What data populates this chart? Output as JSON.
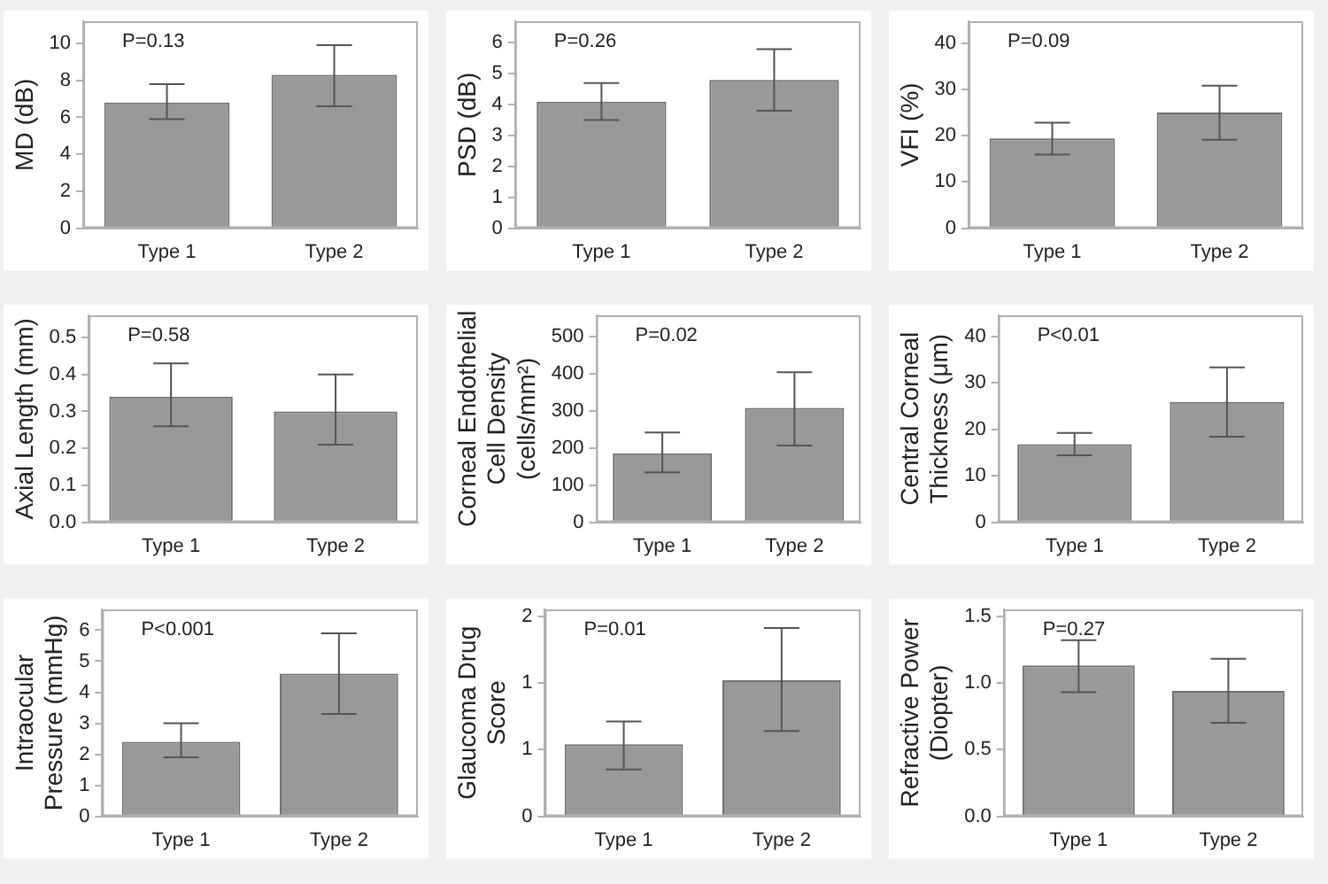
{
  "chart_data": [
    {
      "type": "bar",
      "ylabel": "MD (dB)",
      "categories": [
        "Type 1",
        "Type 2"
      ],
      "values": [
        6.8,
        8.3
      ],
      "errors": [
        [
          5.9,
          7.8
        ],
        [
          6.6,
          9.9
        ]
      ],
      "color": "#999999",
      "ylim": [
        0,
        11.2
      ],
      "yticks": [
        0,
        2,
        4,
        6,
        8,
        10
      ],
      "grid": false,
      "legend": false,
      "annotations": [
        "P=0.13"
      ]
    },
    {
      "type": "bar",
      "ylabel": "PSD (dB)",
      "categories": [
        "Type 1",
        "Type 2"
      ],
      "values": [
        4.1,
        4.8
      ],
      "errors": [
        [
          3.5,
          4.7
        ],
        [
          3.8,
          5.8
        ]
      ],
      "color": "#999999",
      "ylim": [
        0,
        6.7
      ],
      "yticks": [
        0,
        1,
        2,
        3,
        4,
        5,
        6
      ],
      "grid": false,
      "legend": false,
      "annotations": [
        "P=0.26"
      ]
    },
    {
      "type": "bar",
      "ylabel": "VFI (%)",
      "categories": [
        "Type 1",
        "Type 2"
      ],
      "values": [
        19.4,
        25.0
      ],
      "errors": [
        [
          15.9,
          22.8
        ],
        [
          19.1,
          30.8
        ]
      ],
      "color": "#999999",
      "ylim": [
        0,
        44.7
      ],
      "yticks": [
        0,
        10,
        20,
        30,
        40
      ],
      "grid": false,
      "legend": false,
      "annotations": [
        "P=0.09"
      ]
    },
    {
      "type": "bar",
      "ylabel": "Axial Length (mm)",
      "categories": [
        "Type 1",
        "Type 2"
      ],
      "values": [
        0.34,
        0.3
      ],
      "errors": [
        [
          0.26,
          0.43
        ],
        [
          0.21,
          0.4
        ]
      ],
      "color": "#999999",
      "ylim": [
        0,
        0.56
      ],
      "yticks": [
        {
          "value": 0,
          "label": "0.0"
        },
        0.1,
        0.2,
        0.3,
        0.4,
        0.5
      ],
      "grid": false,
      "legend": false,
      "annotations": [
        "P=0.58"
      ]
    },
    {
      "type": "bar",
      "ylabel": "Corneal Endothelial Cell Density (cells/mm²)",
      "categories": [
        "Type 1",
        "Type 2"
      ],
      "values": [
        185,
        307
      ],
      "errors": [
        [
          134,
          241
        ],
        [
          206,
          403
        ]
      ],
      "color": "#999999",
      "ylim": [
        0,
        556
      ],
      "yticks": [
        0,
        100,
        200,
        300,
        400,
        500
      ],
      "grid": false,
      "legend": false,
      "annotations": [
        "P=0.02"
      ]
    },
    {
      "type": "bar",
      "ylabel": "Central Corneal Thickness (μm)",
      "categories": [
        "Type 1",
        "Type 2"
      ],
      "values": [
        16.8,
        25.9
      ],
      "errors": [
        [
          14.4,
          19.2
        ],
        [
          18.4,
          33.3
        ]
      ],
      "color": "#999999",
      "ylim": [
        0,
        44.5
      ],
      "yticks": [
        0,
        10,
        20,
        30,
        40
      ],
      "grid": false,
      "legend": false,
      "annotations": [
        "P<0.01"
      ]
    },
    {
      "type": "bar",
      "ylabel": "Intraocular Pressure (mmHg)",
      "categories": [
        "Type 1",
        "Type 2"
      ],
      "values": [
        2.4,
        4.6
      ],
      "errors": [
        [
          1.9,
          3.0
        ],
        [
          3.3,
          5.9
        ]
      ],
      "color": "#999999",
      "ylim": [
        0,
        6.67
      ],
      "yticks": [
        0,
        1,
        2,
        3,
        4,
        5,
        6
      ],
      "grid": false,
      "legend": false,
      "annotations": [
        "P<0.001"
      ]
    },
    {
      "type": "bar",
      "ylabel": "Glaucoma Drug Score",
      "categories": [
        "Type 1",
        "Type 2"
      ],
      "values": [
        0.54,
        1.02
      ],
      "errors": [
        [
          0.35,
          0.71
        ],
        [
          0.64,
          1.41
        ]
      ],
      "color": "#999999",
      "ylim": [
        0,
        1.55
      ],
      "yticks": [
        0,
        {
          "value": 0.5,
          "label": "1"
        },
        1,
        {
          "value": 1.5,
          "label": "2"
        }
      ],
      "grid": false,
      "legend": false,
      "annotations": [
        "P=0.01"
      ]
    },
    {
      "type": "bar",
      "ylabel": "Refractive Power (Diopter)",
      "categories": [
        "Type 1",
        "Type 2"
      ],
      "values": [
        1.13,
        0.94
      ],
      "errors": [
        [
          0.93,
          1.32
        ],
        [
          0.7,
          1.18
        ]
      ],
      "color": "#999999",
      "ylim": [
        0,
        1.55
      ],
      "yticks": [
        {
          "value": 0,
          "label": "0.0"
        },
        0.5,
        {
          "value": 1,
          "label": "1.0"
        },
        1.5
      ],
      "grid": false,
      "legend": false,
      "annotations": [
        "P=0.27"
      ]
    }
  ]
}
